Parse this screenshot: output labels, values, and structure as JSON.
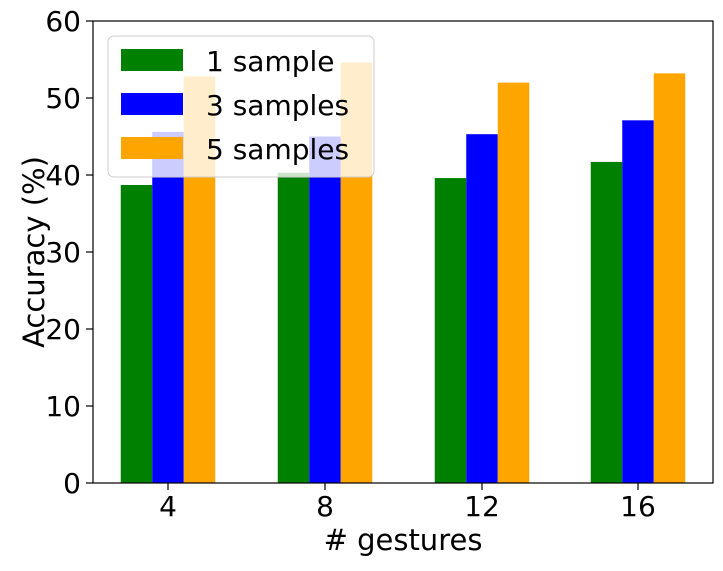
{
  "chart_data": {
    "type": "bar",
    "title": "",
    "xlabel": "# gestures",
    "ylabel": "Accuracy (%)",
    "categories": [
      "4",
      "8",
      "12",
      "16"
    ],
    "ylim": [
      0,
      60
    ],
    "yticks": [
      0,
      10,
      20,
      30,
      40,
      50,
      60
    ],
    "grid": false,
    "legend_position": "top-left",
    "series": [
      {
        "name": "1 sample",
        "color": "#008000",
        "values": [
          38.7,
          40.3,
          39.6,
          41.7
        ]
      },
      {
        "name": "3 samples",
        "color": "#0000ff",
        "values": [
          45.6,
          45.0,
          45.3,
          47.1
        ]
      },
      {
        "name": "5 samples",
        "color": "#ffa500",
        "values": [
          52.8,
          54.6,
          52.0,
          53.2
        ]
      }
    ]
  }
}
